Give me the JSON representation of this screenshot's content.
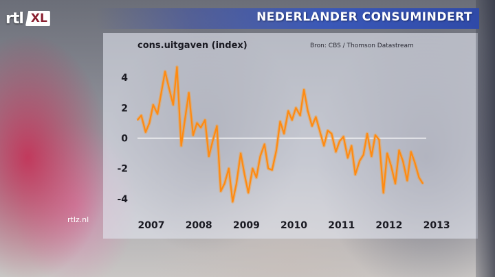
{
  "header": {
    "title": "NEDERLANDER CONSUMINDERT",
    "logo_rtl": "rtl",
    "logo_xl": "XL"
  },
  "footer": {
    "watermark": "rtlz.nl"
  },
  "colors": {
    "title_bar": "#3a58b8",
    "line": "#ff8a10",
    "line_glow": "#f5a040",
    "zero_line": "#ffffff"
  },
  "chart_data": {
    "type": "line",
    "ylabel": "cons.uitgaven (index)",
    "source": "Bron: CBS / Thomson Datastream",
    "ylim": [
      -5,
      5.5
    ],
    "xlim": [
      2007,
      2013.1
    ],
    "y_ticks": [
      4,
      2,
      0,
      -2,
      -4
    ],
    "x_ticks": [
      2007,
      2008,
      2009,
      2010,
      2011,
      2012,
      2013
    ],
    "grid": false,
    "zero_line": true,
    "x": [
      2007.0,
      2007.08,
      2007.17,
      2007.25,
      2007.33,
      2007.42,
      2007.5,
      2007.58,
      2007.67,
      2007.75,
      2007.83,
      2007.92,
      2008.0,
      2008.08,
      2008.17,
      2008.25,
      2008.33,
      2008.42,
      2008.5,
      2008.58,
      2008.67,
      2008.75,
      2008.83,
      2008.92,
      2009.0,
      2009.08,
      2009.17,
      2009.25,
      2009.33,
      2009.42,
      2009.5,
      2009.58,
      2009.67,
      2009.75,
      2009.83,
      2009.92,
      2010.0,
      2010.08,
      2010.17,
      2010.25,
      2010.33,
      2010.42,
      2010.5,
      2010.58,
      2010.67,
      2010.75,
      2010.83,
      2010.92,
      2011.0,
      2011.08,
      2011.17,
      2011.25,
      2011.33,
      2011.42,
      2011.5,
      2011.58,
      2011.67,
      2011.75,
      2011.83,
      2011.92,
      2012.0,
      2012.08,
      2012.17,
      2012.25,
      2012.33,
      2012.42,
      2012.5,
      2012.58,
      2012.67,
      2012.75,
      2012.83,
      2012.92,
      2013.0
    ],
    "series": [
      {
        "values": [
          1.2,
          1.5,
          0.4,
          1.0,
          2.2,
          1.6,
          3.0,
          4.4,
          3.2,
          2.2,
          4.7,
          -0.5,
          1.3,
          3.0,
          0.2,
          1.0,
          0.7,
          1.2,
          -1.2,
          -0.2,
          0.8,
          -3.5,
          -3.0,
          -2.0,
          -4.2,
          -3.0,
          -1.0,
          -2.4,
          -3.6,
          -2.0,
          -2.6,
          -1.2,
          -0.4,
          -2.0,
          -2.1,
          -0.8,
          1.1,
          0.3,
          1.8,
          1.2,
          2.0,
          1.5,
          3.2,
          1.8,
          0.8,
          1.4,
          0.5,
          -0.5,
          0.5,
          0.3,
          -0.9,
          -0.2,
          0.1,
          -1.3,
          -0.5,
          -2.4,
          -1.5,
          -1.1,
          0.3,
          -1.2,
          0.2,
          -0.1,
          -3.6,
          -1.0,
          -1.8,
          -3.0,
          -0.8,
          -1.5,
          -2.8,
          -0.9,
          -1.6,
          -2.6,
          -3.0
        ]
      }
    ]
  }
}
